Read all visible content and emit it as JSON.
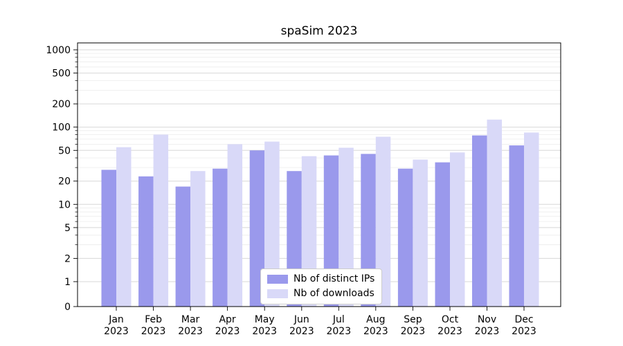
{
  "chart_data": {
    "type": "bar",
    "title": "spaSim 2023",
    "yscale": "symlog (linear 0-1, log 1-1000)",
    "grid": "horizontal major and minor gridlines",
    "legend_position": "lower center inside plot",
    "ylim": [
      0,
      1200
    ],
    "yticks": [
      0,
      1,
      2,
      5,
      10,
      20,
      50,
      100,
      200,
      500,
      1000
    ],
    "categories": [
      {
        "month": "Jan",
        "year": "2023"
      },
      {
        "month": "Feb",
        "year": "2023"
      },
      {
        "month": "Mar",
        "year": "2023"
      },
      {
        "month": "Apr",
        "year": "2023"
      },
      {
        "month": "May",
        "year": "2023"
      },
      {
        "month": "Jun",
        "year": "2023"
      },
      {
        "month": "Jul",
        "year": "2023"
      },
      {
        "month": "Aug",
        "year": "2023"
      },
      {
        "month": "Sep",
        "year": "2023"
      },
      {
        "month": "Oct",
        "year": "2023"
      },
      {
        "month": "Nov",
        "year": "2023"
      },
      {
        "month": "Dec",
        "year": "2023"
      }
    ],
    "series": [
      {
        "name": "Nb of distinct IPs",
        "color": "#9a99ec",
        "values": [
          28,
          23,
          17,
          29,
          50,
          27,
          43,
          45,
          29,
          35,
          78,
          58
        ]
      },
      {
        "name": "Nb of downloads",
        "color": "#d9d9f8",
        "values": [
          55,
          80,
          27,
          60,
          65,
          42,
          54,
          75,
          38,
          47,
          125,
          85
        ]
      }
    ]
  },
  "colors": {
    "background": "#ffffff",
    "grid_major": "#d7d7d7",
    "grid_minor": "#ececec",
    "axis": "#000000",
    "legend_border": "#cccccc",
    "legend_bg": "#ffffff"
  }
}
